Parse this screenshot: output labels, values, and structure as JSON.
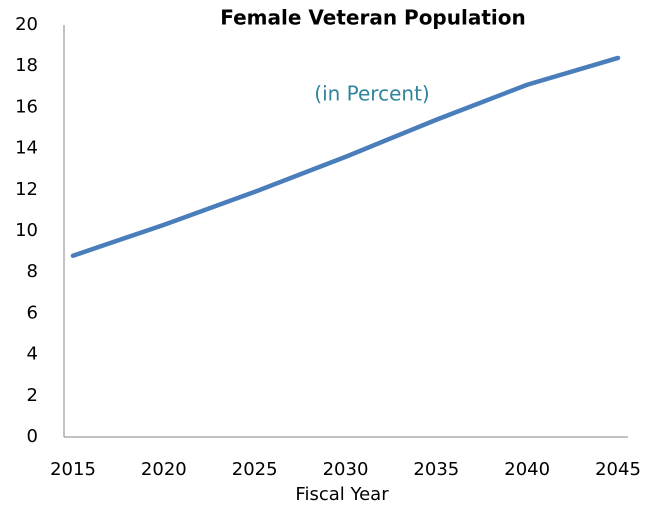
{
  "chart_data": {
    "type": "line",
    "title": "Female Veteran Population",
    "subtitle": "(in Percent)",
    "x_label": "Fiscal Year",
    "x": [
      2015,
      2020,
      2025,
      2030,
      2035,
      2040,
      2045
    ],
    "series": [
      {
        "name": "Female Veteran Population",
        "color": "#4a7ebb",
        "values": [
          8.8,
          10.3,
          11.9,
          13.6,
          15.4,
          17.1,
          18.4
        ]
      }
    ],
    "xlim": [
      2015,
      2045
    ],
    "xticks": [
      2015,
      2020,
      2025,
      2030,
      2035,
      2040,
      2045
    ],
    "ylim": [
      0,
      20
    ],
    "yticks": [
      0,
      2,
      4,
      6,
      8,
      10,
      12,
      14,
      16,
      18,
      20
    ],
    "grid": false
  }
}
